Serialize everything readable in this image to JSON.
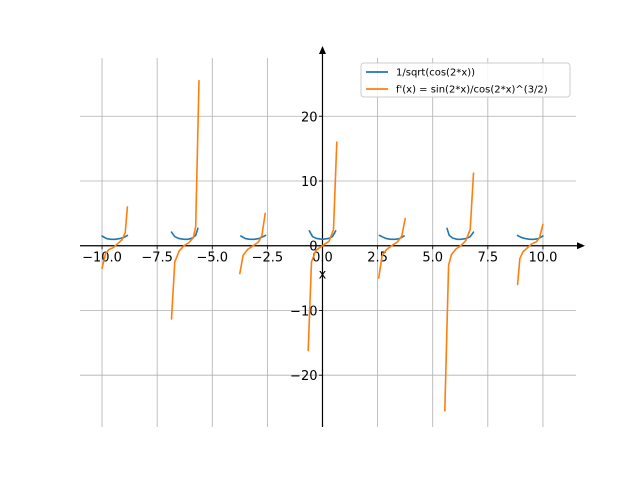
{
  "chart_data": {
    "type": "line",
    "title": "",
    "xlabel": "x",
    "ylabel": "",
    "xlim": [
      -11.0,
      11.5
    ],
    "ylim": [
      -28,
      29
    ],
    "grid": true,
    "legend_position": "top-right",
    "x_ticks": [
      {
        "value": -10.0,
        "label": "−10.0"
      },
      {
        "value": -7.5,
        "label": "−7.5"
      },
      {
        "value": -5.0,
        "label": "−5.0"
      },
      {
        "value": -2.5,
        "label": "−2.5"
      },
      {
        "value": 0.0,
        "label": "0.0"
      },
      {
        "value": 2.5,
        "label": "2.5"
      },
      {
        "value": 5.0,
        "label": "5.0"
      },
      {
        "value": 7.5,
        "label": "7.5"
      },
      {
        "value": 10.0,
        "label": "10.0"
      }
    ],
    "y_ticks": [
      {
        "value": -20,
        "label": "−20"
      },
      {
        "value": -10,
        "label": "−10"
      },
      {
        "value": 0,
        "label": "0"
      },
      {
        "value": 10,
        "label": "10"
      },
      {
        "value": 20,
        "label": "20"
      }
    ],
    "series": [
      {
        "name": "1/sqrt(cos(2*x))",
        "color": "#1f77b4",
        "segments": [
          [
            [
              -10.0,
              1.5
            ],
            [
              -9.8,
              1.1
            ],
            [
              -9.6,
              1.0
            ],
            [
              -9.4,
              1.0
            ],
            [
              -9.2,
              1.1
            ],
            [
              -9.0,
              1.3
            ],
            [
              -8.85,
              1.6
            ]
          ],
          [
            [
              -6.85,
              2.1
            ],
            [
              -6.7,
              1.4
            ],
            [
              -6.5,
              1.1
            ],
            [
              -6.28,
              1.0
            ],
            [
              -6.1,
              1.0
            ],
            [
              -5.9,
              1.2
            ],
            [
              -5.75,
              1.6
            ],
            [
              -5.65,
              2.7
            ]
          ],
          [
            [
              -3.7,
              1.5
            ],
            [
              -3.5,
              1.1
            ],
            [
              -3.3,
              1.0
            ],
            [
              -3.1,
              1.0
            ],
            [
              -2.9,
              1.1
            ],
            [
              -2.7,
              1.4
            ],
            [
              -2.58,
              1.6
            ]
          ],
          [
            [
              -0.6,
              2.3
            ],
            [
              -0.45,
              1.4
            ],
            [
              -0.25,
              1.1
            ],
            [
              0.0,
              1.0
            ],
            [
              0.25,
              1.1
            ],
            [
              0.45,
              1.4
            ],
            [
              0.6,
              2.3
            ]
          ],
          [
            [
              2.58,
              1.6
            ],
            [
              2.7,
              1.4
            ],
            [
              2.9,
              1.1
            ],
            [
              3.1,
              1.0
            ],
            [
              3.3,
              1.0
            ],
            [
              3.5,
              1.1
            ],
            [
              3.7,
              1.5
            ]
          ],
          [
            [
              5.65,
              2.7
            ],
            [
              5.75,
              1.6
            ],
            [
              5.9,
              1.2
            ],
            [
              6.1,
              1.0
            ],
            [
              6.28,
              1.0
            ],
            [
              6.5,
              1.1
            ],
            [
              6.7,
              1.4
            ],
            [
              6.85,
              2.1
            ]
          ],
          [
            [
              8.85,
              1.6
            ],
            [
              9.0,
              1.3
            ],
            [
              9.2,
              1.1
            ],
            [
              9.4,
              1.0
            ],
            [
              9.6,
              1.0
            ],
            [
              9.8,
              1.1
            ],
            [
              10.0,
              1.5
            ]
          ]
        ]
      },
      {
        "name": "f'(x) = sin(2*x)/cos(2*x)^(3/2)",
        "color": "#ff7f0e",
        "segments": [
          [
            [
              -10.0,
              -3.5
            ],
            [
              -9.85,
              -1.3
            ],
            [
              -9.7,
              -0.6
            ],
            [
              -9.5,
              -0.3
            ],
            [
              -9.3,
              0.3
            ],
            [
              -9.1,
              0.9
            ],
            [
              -8.95,
              2.0
            ],
            [
              -8.85,
              6.0
            ]
          ],
          [
            [
              -6.85,
              -11.3
            ],
            [
              -6.7,
              -2.5
            ],
            [
              -6.5,
              -0.8
            ],
            [
              -6.28,
              0.0
            ],
            [
              -6.05,
              0.5
            ],
            [
              -5.85,
              1.3
            ],
            [
              -5.75,
              3.0
            ],
            [
              -5.6,
              25.5
            ]
          ],
          [
            [
              -3.75,
              -4.3
            ],
            [
              -3.6,
              -1.5
            ],
            [
              -3.4,
              -0.6
            ],
            [
              -3.14,
              0.0
            ],
            [
              -2.9,
              0.6
            ],
            [
              -2.75,
              1.6
            ],
            [
              -2.6,
              5.0
            ]
          ],
          [
            [
              -0.65,
              -16.2
            ],
            [
              -0.5,
              -2.5
            ],
            [
              -0.3,
              -0.7
            ],
            [
              0.0,
              0.0
            ],
            [
              0.3,
              0.7
            ],
            [
              0.5,
              2.5
            ],
            [
              0.65,
              16.0
            ]
          ],
          [
            [
              2.55,
              -5.0
            ],
            [
              2.7,
              -1.6
            ],
            [
              2.9,
              -0.6
            ],
            [
              3.14,
              0.0
            ],
            [
              3.4,
              0.6
            ],
            [
              3.6,
              1.5
            ],
            [
              3.75,
              4.2
            ]
          ],
          [
            [
              5.55,
              -25.5
            ],
            [
              5.72,
              -3.0
            ],
            [
              5.85,
              -1.4
            ],
            [
              6.05,
              -0.5
            ],
            [
              6.28,
              0.0
            ],
            [
              6.5,
              0.8
            ],
            [
              6.7,
              2.5
            ],
            [
              6.85,
              11.2
            ]
          ],
          [
            [
              8.85,
              -6.0
            ],
            [
              8.95,
              -2.0
            ],
            [
              9.1,
              -0.9
            ],
            [
              9.3,
              -0.3
            ],
            [
              9.5,
              0.3
            ],
            [
              9.7,
              0.6
            ],
            [
              9.85,
              1.3
            ],
            [
              10.0,
              3.3
            ]
          ]
        ]
      }
    ]
  }
}
